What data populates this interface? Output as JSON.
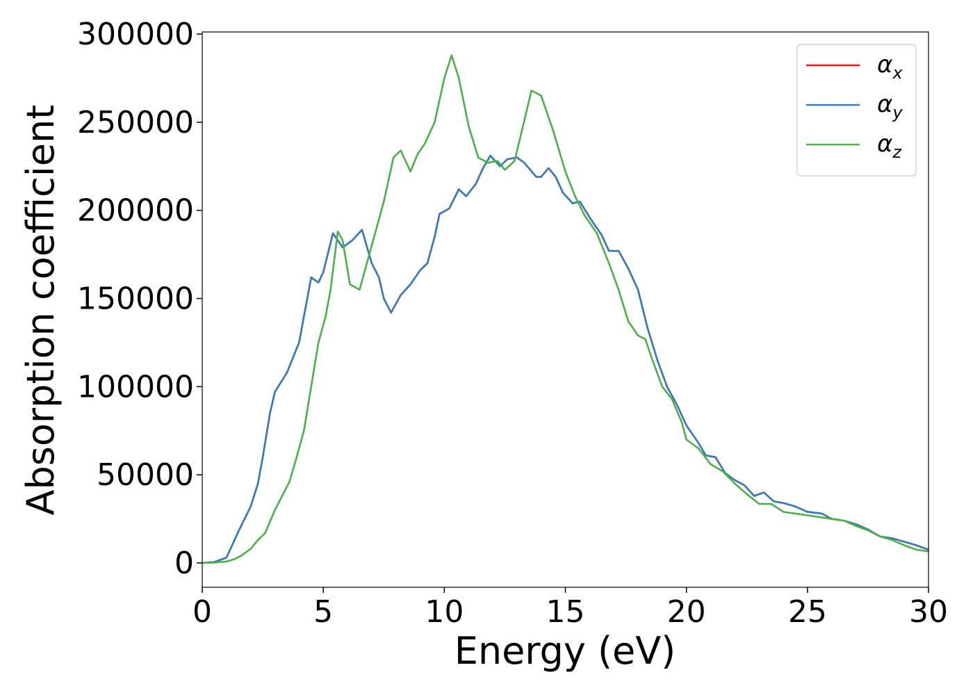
{
  "chart_data": {
    "type": "line",
    "xlabel": "Energy (eV)",
    "ylabel": "Absorption coefficient",
    "xlim": [
      0,
      30
    ],
    "xticks": [
      0,
      5,
      10,
      15,
      20,
      25,
      30
    ],
    "ylim": [
      -13800,
      301200
    ],
    "yticks": [
      0,
      50000,
      100000,
      150000,
      200000,
      250000,
      300000
    ],
    "grid": false,
    "legend": "upper right",
    "series": [
      {
        "name": "αx",
        "color": "#e41a1c",
        "x": [
          0,
          0.5,
          1.0,
          1.5,
          2.0,
          2.3,
          2.5,
          2.8,
          3.0,
          3.5,
          4.0,
          4.5,
          4.8,
          5.0,
          5.4,
          5.8,
          6.2,
          6.6,
          7.0,
          7.3,
          7.5,
          7.8,
          8.2,
          8.6,
          9.0,
          9.3,
          9.6,
          9.8,
          10.2,
          10.6,
          10.9,
          11.3,
          11.6,
          11.9,
          12.3,
          12.6,
          13.0,
          13.3,
          13.8,
          14.0,
          14.3,
          14.6,
          14.9,
          15.3,
          15.6,
          16.0,
          16.5,
          16.8,
          17.2,
          17.6,
          18.0,
          18.4,
          18.8,
          19.2,
          19.6,
          20.0,
          20.5,
          20.8,
          21.2,
          21.6,
          22.0,
          22.4,
          22.8,
          23.2,
          23.6,
          24.0,
          24.5,
          25.0,
          25.6,
          26.0,
          26.5,
          27.0,
          27.5,
          28.0,
          28.5,
          29.0,
          29.5,
          30.0
        ],
        "values": [
          0,
          500,
          3000,
          18000,
          32000,
          45000,
          60000,
          85000,
          97000,
          108000,
          125000,
          162000,
          159000,
          165000,
          187000,
          179000,
          183000,
          189000,
          170000,
          162000,
          150000,
          142000,
          152000,
          158000,
          166000,
          170000,
          185000,
          198000,
          201000,
          212000,
          208000,
          215000,
          224000,
          231000,
          225000,
          229000,
          230000,
          227000,
          219000,
          219000,
          224000,
          219000,
          210000,
          204000,
          205000,
          196000,
          186000,
          177000,
          177000,
          167000,
          155000,
          133000,
          115000,
          100000,
          90000,
          78000,
          68000,
          61000,
          60000,
          51000,
          47000,
          44000,
          38000,
          40000,
          35000,
          34000,
          32000,
          29000,
          28000,
          25000,
          24000,
          22000,
          19000,
          15000,
          14000,
          12000,
          10000,
          7500
        ]
      },
      {
        "name": "αy",
        "color": "#377eb8",
        "x": [
          0,
          0.5,
          1.0,
          1.5,
          2.0,
          2.3,
          2.5,
          2.8,
          3.0,
          3.5,
          4.0,
          4.5,
          4.8,
          5.0,
          5.4,
          5.8,
          6.2,
          6.6,
          7.0,
          7.3,
          7.5,
          7.8,
          8.2,
          8.6,
          9.0,
          9.3,
          9.6,
          9.8,
          10.2,
          10.6,
          10.9,
          11.3,
          11.6,
          11.9,
          12.3,
          12.6,
          13.0,
          13.3,
          13.8,
          14.0,
          14.3,
          14.6,
          14.9,
          15.3,
          15.6,
          16.0,
          16.5,
          16.8,
          17.2,
          17.6,
          18.0,
          18.4,
          18.8,
          19.2,
          19.6,
          20.0,
          20.5,
          20.8,
          21.2,
          21.6,
          22.0,
          22.4,
          22.8,
          23.2,
          23.6,
          24.0,
          24.5,
          25.0,
          25.6,
          26.0,
          26.5,
          27.0,
          27.5,
          28.0,
          28.5,
          29.0,
          29.5,
          30.0
        ],
        "values": [
          0,
          500,
          3000,
          18000,
          32000,
          45000,
          60000,
          85000,
          97000,
          108000,
          125000,
          162000,
          159000,
          165000,
          187000,
          179000,
          183000,
          189000,
          170000,
          162000,
          150000,
          142000,
          152000,
          158000,
          166000,
          170000,
          185000,
          198000,
          201000,
          212000,
          208000,
          215000,
          224000,
          231000,
          225000,
          229000,
          230000,
          227000,
          219000,
          219000,
          224000,
          219000,
          210000,
          204000,
          205000,
          196000,
          186000,
          177000,
          177000,
          167000,
          155000,
          133000,
          115000,
          100000,
          90000,
          78000,
          68000,
          61000,
          60000,
          51000,
          47000,
          44000,
          38000,
          40000,
          35000,
          34000,
          32000,
          29000,
          28000,
          25000,
          24000,
          22000,
          19000,
          15000,
          14000,
          12000,
          10000,
          7500
        ]
      },
      {
        "name": "αz",
        "color": "#4daf4a",
        "x": [
          0,
          0.5,
          1.0,
          1.3,
          1.6,
          2.0,
          2.3,
          2.6,
          3.0,
          3.3,
          3.6,
          3.9,
          4.2,
          4.5,
          4.8,
          5.1,
          5.3,
          5.6,
          5.8,
          6.1,
          6.5,
          6.8,
          7.1,
          7.5,
          7.9,
          8.2,
          8.6,
          8.9,
          9.2,
          9.6,
          10.0,
          10.3,
          10.6,
          11.0,
          11.4,
          11.8,
          12.2,
          12.5,
          12.9,
          13.2,
          13.6,
          14.0,
          14.5,
          15.0,
          15.4,
          15.8,
          16.3,
          16.8,
          17.2,
          17.6,
          18.0,
          18.3,
          18.6,
          19.0,
          19.4,
          19.8,
          20.0,
          20.5,
          21.0,
          21.5,
          22.0,
          22.5,
          23.0,
          23.5,
          24.0,
          24.5,
          25.0,
          25.5,
          26.0,
          26.5,
          27.0,
          27.5,
          28.0,
          28.5,
          29.0,
          29.5,
          30.0
        ],
        "values": [
          0,
          200,
          800,
          2000,
          4000,
          8000,
          13000,
          17000,
          30000,
          38000,
          46000,
          60000,
          75000,
          100000,
          125000,
          140000,
          155000,
          188000,
          183000,
          158000,
          155000,
          170000,
          185000,
          205000,
          230000,
          234000,
          222000,
          232000,
          238000,
          250000,
          275000,
          288000,
          275000,
          248000,
          230000,
          227000,
          228000,
          223000,
          228000,
          245000,
          268000,
          265000,
          245000,
          222000,
          208000,
          197000,
          187000,
          170000,
          155000,
          137000,
          129000,
          127000,
          115000,
          100000,
          93000,
          80000,
          70000,
          65000,
          56000,
          52000,
          45000,
          39000,
          33500,
          33500,
          29000,
          28000,
          27000,
          26000,
          25000,
          24000,
          21000,
          18500,
          15000,
          13000,
          10000,
          7500,
          6500
        ]
      }
    ]
  }
}
